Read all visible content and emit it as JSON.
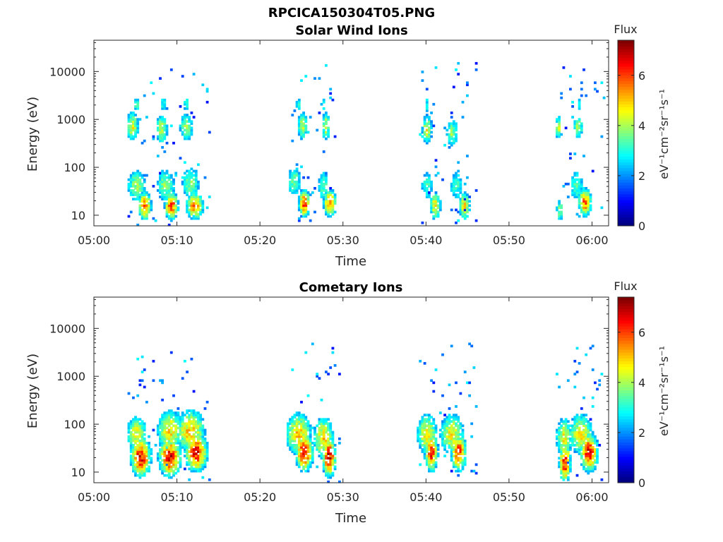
{
  "figure": {
    "title": "RPCICA150304T05.PNG"
  },
  "colorbar": {
    "title": "Flux",
    "unit_label": "eV⁻¹cm⁻²sr⁻¹s⁻¹",
    "range": [
      0,
      7.4
    ],
    "ticks": [
      "0",
      "2",
      "4",
      "6"
    ],
    "colormap": "jet"
  },
  "chart_data": [
    {
      "type": "heatmap",
      "title": "Solar Wind Ions",
      "xlabel": "Time",
      "ylabel": "Energy (eV)",
      "x_ticks": [
        "05:00",
        "05:10",
        "05:20",
        "05:30",
        "05:40",
        "05:50",
        "06:00"
      ],
      "y_ticks": [
        "10",
        "100",
        "1000",
        "10000"
      ],
      "y_scale": "log",
      "xlim_minutes": [
        0,
        62
      ],
      "ylim": [
        6,
        45000
      ],
      "blobs": [
        {
          "t": 4.5,
          "e": 700,
          "flux": 4.5,
          "dt": 0.6,
          "de": 0.25
        },
        {
          "t": 5.0,
          "e": 2000,
          "flux": 3.2,
          "dt": 0.4,
          "de": 0.15
        },
        {
          "t": 8.0,
          "e": 600,
          "flux": 4.3,
          "dt": 0.6,
          "de": 0.25
        },
        {
          "t": 8.2,
          "e": 2000,
          "flux": 3.0,
          "dt": 0.4,
          "de": 0.15
        },
        {
          "t": 11.0,
          "e": 650,
          "flux": 4.0,
          "dt": 0.7,
          "de": 0.25
        },
        {
          "t": 11.0,
          "e": 2000,
          "flux": 3.1,
          "dt": 0.4,
          "de": 0.15
        },
        {
          "t": 25.0,
          "e": 700,
          "flux": 4.2,
          "dt": 0.5,
          "de": 0.25
        },
        {
          "t": 24.5,
          "e": 2000,
          "flux": 3.0,
          "dt": 0.3,
          "de": 0.15
        },
        {
          "t": 27.8,
          "e": 700,
          "flux": 4.2,
          "dt": 0.4,
          "de": 0.25
        },
        {
          "t": 27.5,
          "e": 2000,
          "flux": 3.0,
          "dt": 0.3,
          "de": 0.15
        },
        {
          "t": 40.0,
          "e": 600,
          "flux": 4.5,
          "dt": 0.5,
          "de": 0.25
        },
        {
          "t": 40.0,
          "e": 1800,
          "flux": 3.0,
          "dt": 0.3,
          "de": 0.15
        },
        {
          "t": 43.0,
          "e": 500,
          "flux": 3.8,
          "dt": 0.6,
          "de": 0.25
        },
        {
          "t": 55.8,
          "e": 650,
          "flux": 4.2,
          "dt": 0.3,
          "de": 0.2
        },
        {
          "t": 58.2,
          "e": 650,
          "flux": 4.0,
          "dt": 0.5,
          "de": 0.2
        },
        {
          "t": 58.3,
          "e": 2000,
          "flux": 2.8,
          "dt": 0.3,
          "de": 0.15
        },
        {
          "t": 6.0,
          "e": 15,
          "flux": 5.8,
          "dt": 0.6,
          "de": 0.22
        },
        {
          "t": 5.0,
          "e": 40,
          "flux": 3.8,
          "dt": 1.0,
          "de": 0.3
        },
        {
          "t": 9.2,
          "e": 15,
          "flux": 6.0,
          "dt": 0.6,
          "de": 0.22
        },
        {
          "t": 8.5,
          "e": 40,
          "flux": 3.8,
          "dt": 1.0,
          "de": 0.3
        },
        {
          "t": 12.0,
          "e": 15,
          "flux": 5.5,
          "dt": 0.8,
          "de": 0.22
        },
        {
          "t": 11.5,
          "e": 45,
          "flux": 3.6,
          "dt": 1.0,
          "de": 0.3
        },
        {
          "t": 25.2,
          "e": 17,
          "flux": 6.0,
          "dt": 0.5,
          "de": 0.22
        },
        {
          "t": 24.0,
          "e": 50,
          "flux": 3.5,
          "dt": 0.8,
          "de": 0.3
        },
        {
          "t": 28.3,
          "e": 17,
          "flux": 5.6,
          "dt": 0.6,
          "de": 0.22
        },
        {
          "t": 27.5,
          "e": 40,
          "flux": 3.4,
          "dt": 0.6,
          "de": 0.3
        },
        {
          "t": 41.0,
          "e": 15,
          "flux": 5.0,
          "dt": 0.5,
          "de": 0.22
        },
        {
          "t": 40.0,
          "e": 40,
          "flux": 3.2,
          "dt": 0.7,
          "de": 0.3
        },
        {
          "t": 44.5,
          "e": 15,
          "flux": 5.0,
          "dt": 0.5,
          "de": 0.22
        },
        {
          "t": 43.5,
          "e": 40,
          "flux": 3.2,
          "dt": 0.8,
          "de": 0.3
        },
        {
          "t": 56.0,
          "e": 12,
          "flux": 3.6,
          "dt": 0.4,
          "de": 0.22
        },
        {
          "t": 59.0,
          "e": 18,
          "flux": 5.8,
          "dt": 0.6,
          "de": 0.22
        },
        {
          "t": 58.0,
          "e": 40,
          "flux": 3.3,
          "dt": 0.8,
          "de": 0.3
        }
      ],
      "windows": [
        [
          4,
          14
        ],
        [
          23.5,
          29
        ],
        [
          39,
          46
        ],
        [
          55.5,
          61.5
        ]
      ],
      "sparse_max_energy": 15000
    },
    {
      "type": "heatmap",
      "title": "Cometary Ions",
      "xlabel": "Time",
      "ylabel": "Energy (eV)",
      "x_ticks": [
        "05:00",
        "05:10",
        "05:20",
        "05:30",
        "05:40",
        "05:50",
        "06:00"
      ],
      "y_ticks": [
        "10",
        "100",
        "1000",
        "10000"
      ],
      "y_scale": "log",
      "xlim_minutes": [
        0,
        62
      ],
      "ylim": [
        6,
        45000
      ],
      "blobs": [
        {
          "t": 5.5,
          "e": 20,
          "flux": 6.6,
          "dt": 0.9,
          "de": 0.3
        },
        {
          "t": 5.0,
          "e": 60,
          "flux": 4.5,
          "dt": 1.0,
          "de": 0.3
        },
        {
          "t": 4.5,
          "e": 750,
          "flux": 2.2,
          "dt": 0.5,
          "de": 0.15
        },
        {
          "t": 9.0,
          "e": 20,
          "flux": 6.5,
          "dt": 1.0,
          "de": 0.3
        },
        {
          "t": 9.0,
          "e": 70,
          "flux": 4.8,
          "dt": 1.2,
          "de": 0.35
        },
        {
          "t": 8.0,
          "e": 750,
          "flux": 2.3,
          "dt": 0.5,
          "de": 0.15
        },
        {
          "t": 12.2,
          "e": 25,
          "flux": 6.4,
          "dt": 1.0,
          "de": 0.3
        },
        {
          "t": 11.5,
          "e": 70,
          "flux": 5.0,
          "dt": 1.4,
          "de": 0.35
        },
        {
          "t": 25.2,
          "e": 25,
          "flux": 6.4,
          "dt": 0.8,
          "de": 0.3
        },
        {
          "t": 24.5,
          "e": 60,
          "flux": 5.0,
          "dt": 1.2,
          "de": 0.35
        },
        {
          "t": 28.2,
          "e": 20,
          "flux": 6.6,
          "dt": 0.6,
          "de": 0.3
        },
        {
          "t": 27.5,
          "e": 50,
          "flux": 4.8,
          "dt": 1.0,
          "de": 0.35
        },
        {
          "t": 40.5,
          "e": 25,
          "flux": 6.2,
          "dt": 0.6,
          "de": 0.3
        },
        {
          "t": 40.0,
          "e": 60,
          "flux": 4.6,
          "dt": 1.0,
          "de": 0.35
        },
        {
          "t": 43.8,
          "e": 25,
          "flux": 6.0,
          "dt": 0.7,
          "de": 0.3
        },
        {
          "t": 43.0,
          "e": 60,
          "flux": 4.6,
          "dt": 1.2,
          "de": 0.35
        },
        {
          "t": 56.6,
          "e": 15,
          "flux": 6.4,
          "dt": 0.5,
          "de": 0.3
        },
        {
          "t": 56.5,
          "e": 50,
          "flux": 4.5,
          "dt": 0.8,
          "de": 0.35
        },
        {
          "t": 59.5,
          "e": 25,
          "flux": 6.5,
          "dt": 0.8,
          "de": 0.3
        },
        {
          "t": 58.5,
          "e": 60,
          "flux": 4.6,
          "dt": 1.2,
          "de": 0.35
        }
      ],
      "windows": [
        [
          4,
          14
        ],
        [
          23.5,
          29.5
        ],
        [
          39,
          46
        ],
        [
          55.5,
          61.5
        ]
      ],
      "sparse_max_energy": 5000
    }
  ]
}
